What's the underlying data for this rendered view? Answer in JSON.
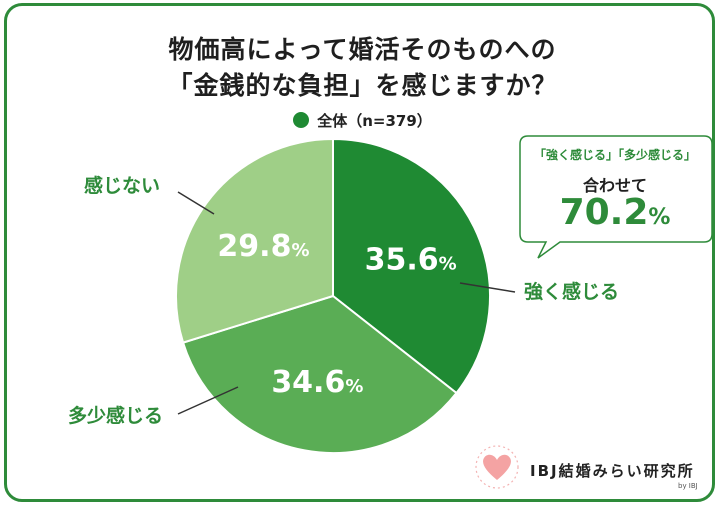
{
  "title_line1": "物価高によって婚活そのものへの",
  "title_line2": "「金銭的な負担」を感じますか？",
  "legend_label": "全体（n=379）",
  "colors": {
    "frame": "#2e8b3a",
    "legend_dot": "#1f8a33"
  },
  "chart_data": {
    "type": "pie",
    "slices": [
      {
        "label": "強く感じる",
        "value": 35.6,
        "color": "#1f8a33"
      },
      {
        "label": "多少感じる",
        "value": 34.6,
        "color": "#5aad55"
      },
      {
        "label": "感じない",
        "value": 29.8,
        "color": "#9fcf87"
      }
    ],
    "unit": "%"
  },
  "callout": {
    "line1": "「強く感じる」「多少感じる」",
    "line2": "合わせて",
    "value": "70.2",
    "unit": "%"
  },
  "logo": {
    "text": "IBJ結婚みらい研究所",
    "sub": "by IBJ",
    "icon": "heart-icon"
  }
}
